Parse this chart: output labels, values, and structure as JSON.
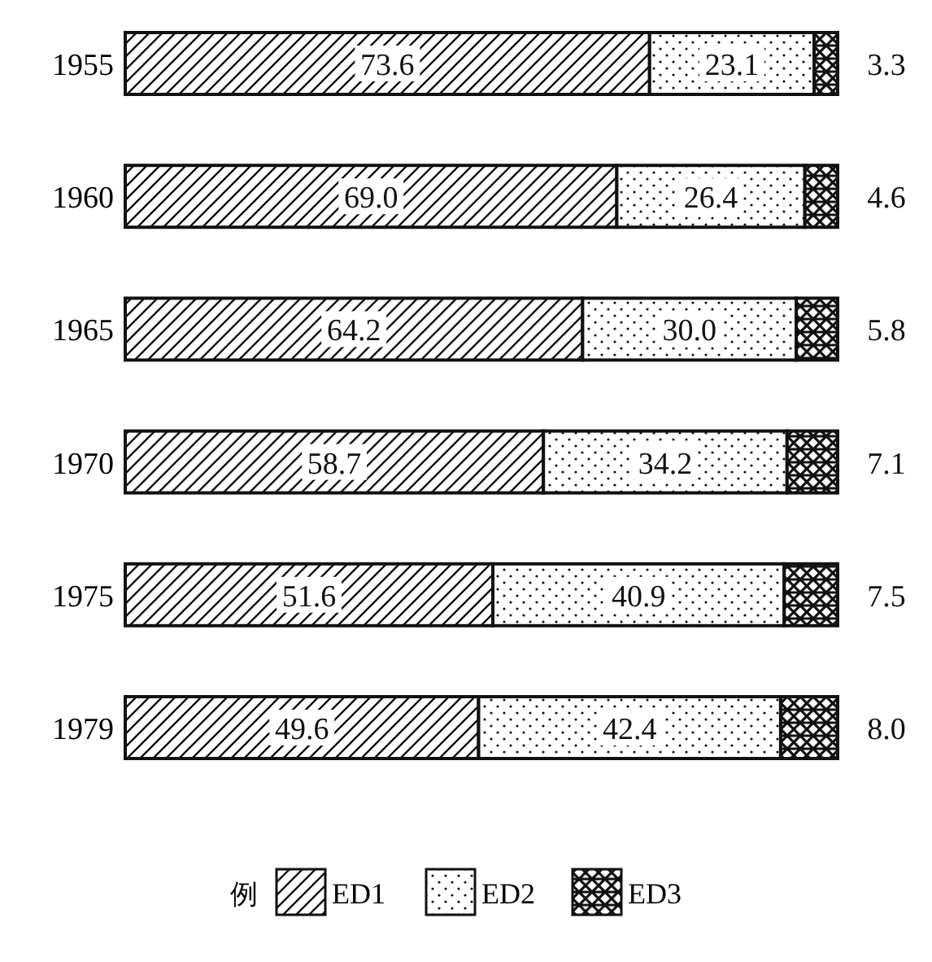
{
  "chart_data": {
    "type": "bar",
    "orientation": "horizontal",
    "stacked": true,
    "legend": "bottom",
    "legend_title": "例",
    "categories": [
      "1955",
      "1960",
      "1965",
      "1970",
      "1975",
      "1979"
    ],
    "series": [
      {
        "name": "ED1",
        "color": "#111111",
        "values": [
          73.6,
          69.0,
          64.2,
          58.7,
          51.6,
          49.6
        ],
        "value_labels": [
          "73.6",
          "69.0",
          "64.2",
          "58.7",
          "51.6",
          "49.6"
        ]
      },
      {
        "name": "ED2",
        "color": "#111111",
        "values": [
          23.1,
          26.4,
          30.0,
          34.2,
          40.9,
          42.4
        ],
        "value_labels": [
          "23.1",
          "26.4",
          "30.0",
          "34.2",
          "40.9",
          "42.4"
        ]
      },
      {
        "name": "ED3",
        "color": "#111111",
        "values": [
          3.3,
          4.6,
          5.8,
          7.1,
          7.5,
          8.0
        ],
        "value_labels": [
          "3.3",
          "4.6",
          "5.8",
          "7.1",
          "7.5",
          "8.0"
        ]
      }
    ]
  }
}
